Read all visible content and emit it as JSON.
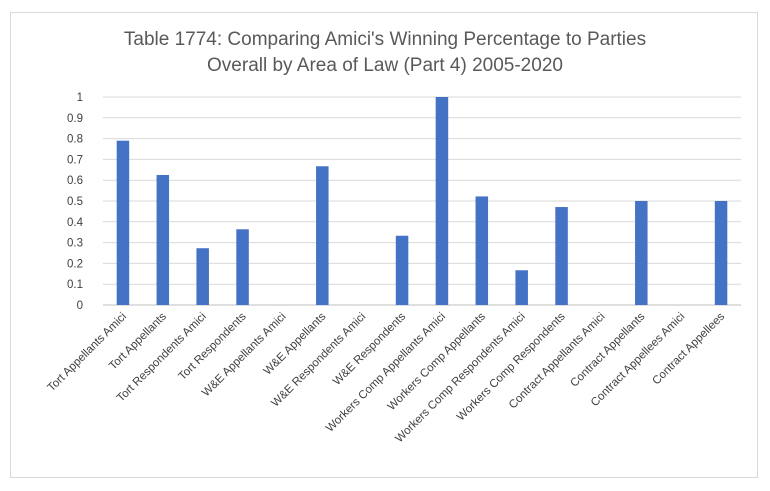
{
  "chart_data": {
    "type": "bar",
    "title": "Table 1774: Comparing Amici's Winning Percentage to Parties Overall by Area of Law (Part 4) 2005-2020",
    "title_lines": [
      "Table 1774: Comparing Amici's Winning Percentage to Parties",
      "Overall by Area of Law (Part 4) 2005-2020"
    ],
    "categories": [
      "Tort Appellants Amici",
      "Tort Appellants",
      "Tort Respondents Amici",
      "Tort Respondents",
      "W&E Appellants Amici",
      "W&E Appellants",
      "W&E Respondents Amici",
      "W&E Respondents",
      "Workers Comp Appellants Amici",
      "Workers Comp Appellants",
      "Workers Comp Respondents Amici",
      "Workers Comp Respondents",
      "Contract Appellants Amici",
      "Contract Appellants",
      "Contract Appellees Amici",
      "Contract Appellees"
    ],
    "values": [
      0.79,
      0.625,
      0.273,
      0.364,
      0,
      0.667,
      0,
      0.333,
      1,
      0.522,
      0.167,
      0.471,
      0,
      0.5,
      0,
      0.5
    ],
    "yticks": [
      "0",
      "0.1",
      "0.2",
      "0.3",
      "0.4",
      "0.5",
      "0.6",
      "0.7",
      "0.8",
      "0.9",
      "1"
    ],
    "ylim": [
      0,
      1
    ],
    "xlabel": "",
    "ylabel": "",
    "grid": true,
    "legend": "none",
    "bar_color": "#4472C4"
  }
}
